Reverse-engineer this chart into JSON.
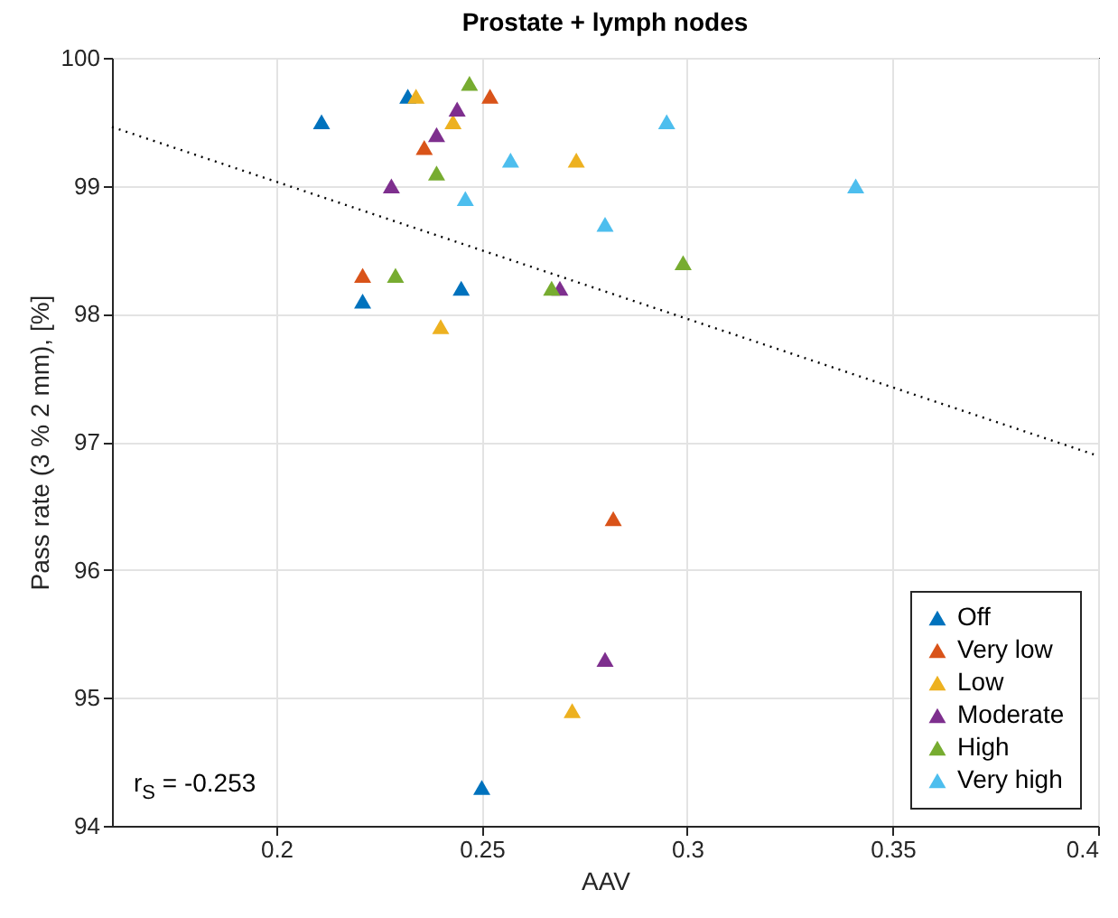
{
  "chart_data": {
    "type": "scatter",
    "title": "Prostate + lymph nodes",
    "xlabel": "AAV",
    "ylabel": "Pass rate (3 % 2 mm), [%]",
    "xlim": [
      0.16,
      0.4
    ],
    "xticks": [
      0.2,
      0.25,
      0.3,
      0.35,
      0.4
    ],
    "ylim": [
      94,
      100
    ],
    "yticks": [
      94,
      95,
      96,
      97,
      98,
      99,
      100
    ],
    "grid": true,
    "legend": "bottom right",
    "marker": "triangle",
    "annotations": [
      "r$_{S}$ = -0.253"
    ],
    "series": [
      {
        "name": "Off",
        "color": "#0072bd",
        "x": [
          0.211,
          0.232,
          0.221,
          0.245,
          0.25
        ],
        "values": [
          99.5,
          99.7,
          98.1,
          98.2,
          94.3
        ]
      },
      {
        "name": "Very low",
        "color": "#d95319",
        "x": [
          0.252,
          0.236,
          0.221,
          0.282
        ],
        "values": [
          99.7,
          99.3,
          98.3,
          96.4
        ]
      },
      {
        "name": "Low",
        "color": "#edb120",
        "x": [
          0.234,
          0.243,
          0.273,
          0.24,
          0.272
        ],
        "values": [
          99.7,
          99.5,
          99.2,
          97.9,
          94.9
        ]
      },
      {
        "name": "Moderate",
        "color": "#7e2f8e",
        "x": [
          0.244,
          0.239,
          0.228,
          0.269,
          0.28
        ],
        "values": [
          99.6,
          99.4,
          99.0,
          98.2,
          95.3
        ]
      },
      {
        "name": "High",
        "color": "#77ac30",
        "x": [
          0.247,
          0.239,
          0.229,
          0.267,
          0.299
        ],
        "values": [
          99.8,
          99.1,
          98.3,
          98.2,
          98.4
        ]
      },
      {
        "name": "Very high",
        "color": "#4dbeee",
        "x": [
          0.257,
          0.246,
          0.28,
          0.295,
          0.341
        ],
        "values": [
          99.2,
          98.9,
          98.7,
          99.5,
          99.0
        ]
      },
      {
        "type": "line",
        "color": "#000000",
        "line_style": "dotted",
        "marker": "none",
        "x": [
          0.16,
          0.4
        ],
        "values": [
          99.46,
          96.89
        ]
      }
    ]
  }
}
